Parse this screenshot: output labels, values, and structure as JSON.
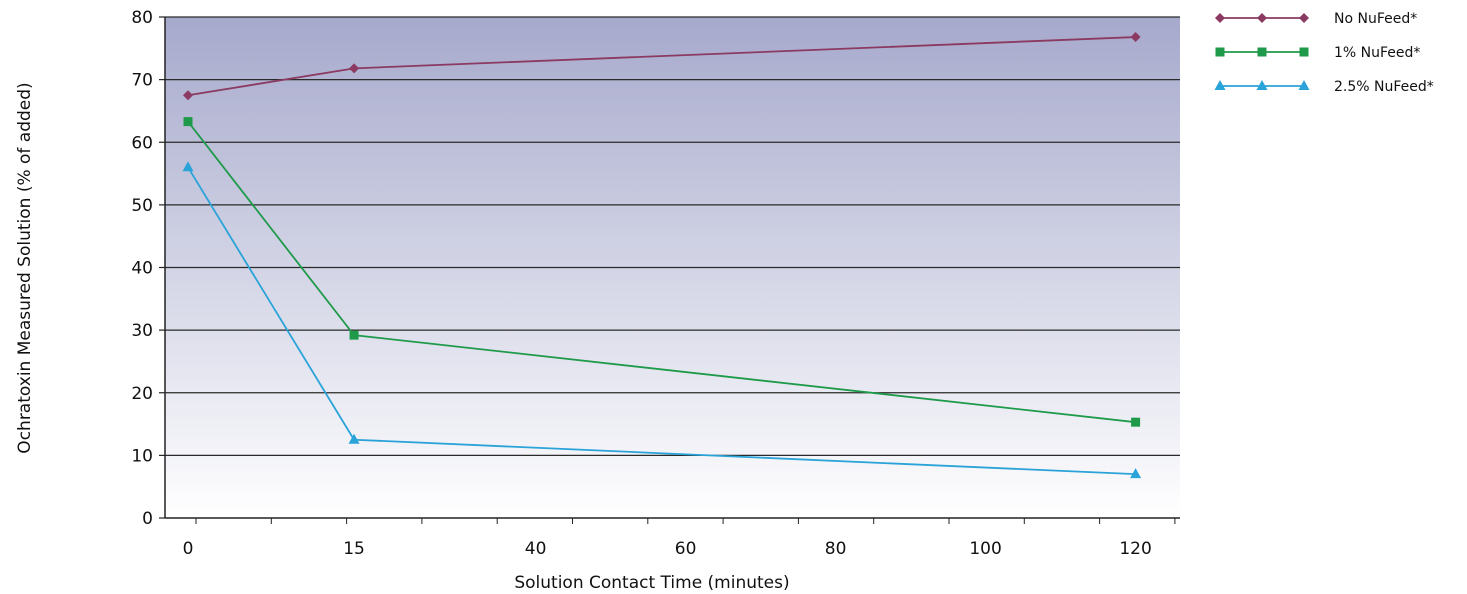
{
  "chart_data": {
    "type": "line",
    "title": "",
    "xlabel": "Solution Contact Time (minutes)",
    "ylabel": "Ochratoxin Measured Solution (% of added)",
    "ylim": [
      0,
      80
    ],
    "y_ticks": [
      "0",
      "10",
      "20",
      "30",
      "40",
      "50",
      "60",
      "70",
      "80"
    ],
    "x_ticks": [
      "0",
      "15",
      "40",
      "60",
      "80",
      "100",
      "120"
    ],
    "x_positions": [
      "0",
      "15",
      "120"
    ],
    "grid": true,
    "legend_position": "top-right",
    "series": [
      {
        "name": "No NuFeed*",
        "color": "#8b3a62",
        "marker": "diamond",
        "values": [
          67.5,
          71.8,
          76.8
        ]
      },
      {
        "name": "1% NuFeed*",
        "color": "#1f9a4a",
        "marker": "square",
        "values": [
          63.3,
          29.2,
          15.3
        ]
      },
      {
        "name": "2.5% NuFeed*",
        "color": "#2aa3d8",
        "marker": "triangle",
        "values": [
          56.0,
          12.5,
          7.0
        ]
      }
    ],
    "colors": {
      "plot_top": "#a6a9cc",
      "plot_bottom": "#ffffff",
      "grid": "#2a2a2a"
    }
  }
}
